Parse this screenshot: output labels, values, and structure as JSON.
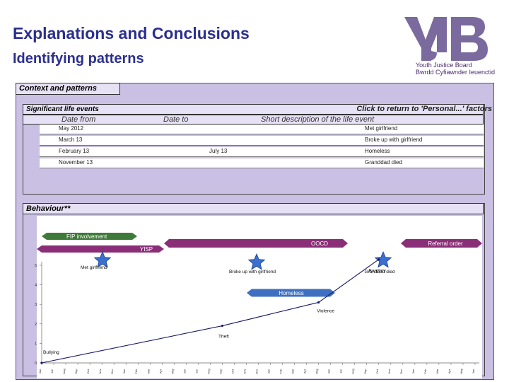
{
  "header": {
    "title": "Explanations and Conclusions",
    "subtitle": "Identifying patterns"
  },
  "logo": {
    "line1": "Youth Justice Board",
    "line2": "Bwrdd Cyfiawnder Ieuenctid",
    "color": "#7a6a9e"
  },
  "context": {
    "title": "Context and patterns",
    "events_title": "Significant life events",
    "return_link": "Click to return to 'Personal...' factors",
    "col_from": "Date from",
    "col_to": "Date to",
    "col_desc": "Short description of the life event",
    "rows": [
      {
        "from": "May 2012",
        "to": "",
        "desc": "Met girlfriend"
      },
      {
        "from": "March 13",
        "to": "",
        "desc": "Broke up with girlfriend"
      },
      {
        "from": "February  13",
        "to": "July 13",
        "desc": "Homeless"
      },
      {
        "from": "November  13",
        "to": "",
        "desc": "Granddad died"
      }
    ]
  },
  "behaviour": {
    "title": "Behaviour**",
    "bars": [
      {
        "label": "FIP involvement",
        "color": "#3f7a3a"
      },
      {
        "label": "YISP",
        "color": "#8a2f77"
      },
      {
        "label": "OOCD",
        "color": "#8a2f77"
      },
      {
        "label": "Referral order",
        "color": "#8a2f77"
      },
      {
        "label": "Homeless",
        "color": "#3f6fc0"
      }
    ],
    "stars": [
      "Met girlfriend",
      "Broke up with girlfriend",
      "Granddad died"
    ]
  },
  "chart_data": {
    "type": "line",
    "ylim": [
      0,
      5
    ],
    "yticks": [
      "0",
      "1",
      "2",
      "3",
      "4",
      "5"
    ],
    "x": [
      "Jun",
      "Jul",
      "Aug",
      "Sep",
      "Oct",
      "Nov",
      "Dec",
      "Jan",
      "Feb",
      "Mar",
      "Apr",
      "May",
      "Jun",
      "Jul",
      "Aug",
      "Sep",
      "Oct",
      "Nov",
      "Dec",
      "Jan",
      "Feb",
      "Mar",
      "Apr",
      "May",
      "Jun",
      "Jul",
      "Aug",
      "Sep",
      "Oct",
      "Nov",
      "Dec",
      "Jan",
      "Feb",
      "Mar",
      "Apr",
      "May",
      "Jun"
    ],
    "series": [
      {
        "points": [
          [
            0,
            0
          ],
          [
            15,
            1.9
          ],
          [
            23,
            3.1
          ],
          [
            28,
            5.3
          ]
        ],
        "color": "#1a1a6e"
      }
    ],
    "annotations": [
      "Bullying",
      "Theft",
      "Violence",
      "Burglary"
    ]
  }
}
